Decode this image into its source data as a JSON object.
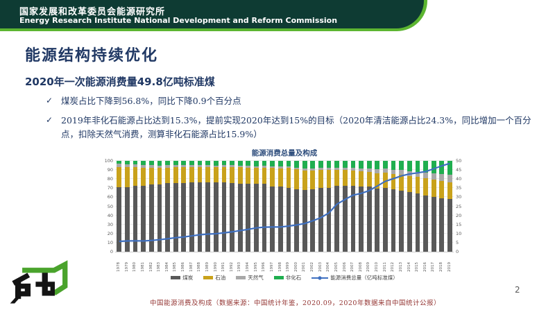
{
  "header": {
    "title_cn": "国家发展和改革委员会能源研究所",
    "title_en": "Energy Research Institute National Development and Reform Commission"
  },
  "slide": {
    "title": "能源结构持续优化",
    "subtitle": "2020年一次能源消费量49.8亿吨标准煤",
    "bullet_mark": "✓",
    "bullets": [
      "煤炭占比下降到56.8%，同比下降0.9个百分点",
      "2019年非化石能源占比达到15.3%，提前实现2020年达到15%的目标（2020年清洁能源占比24.3%，同比增加一个百分点，扣除天然气消费，测算非化石能源占比15.9%）"
    ],
    "caption": "中国能源消费及构成（数据来源：中国统计年鉴，2020.09，2020年数据来自中国统计公报）",
    "page_number": "2"
  },
  "colors": {
    "header_bg": "#0e3b33",
    "accent_green": "#5cb531",
    "navy": "#203864",
    "caption_red": "#953735"
  },
  "chart_data": {
    "type": "combo_stacked_bar_line",
    "title": "能源消费总量及构成",
    "years": [
      1978,
      1979,
      1980,
      1981,
      1982,
      1983,
      1984,
      1985,
      1986,
      1987,
      1988,
      1989,
      1990,
      1991,
      1992,
      1993,
      1994,
      1995,
      1996,
      1997,
      1998,
      1999,
      2000,
      2001,
      2002,
      2003,
      2004,
      2005,
      2006,
      2007,
      2008,
      2009,
      2010,
      2011,
      2012,
      2013,
      2014,
      2015,
      2016,
      2017,
      2018,
      2019
    ],
    "series": [
      {
        "name": "煤炭",
        "color": "#595959",
        "values": [
          70.7,
          71.3,
          72.2,
          72.7,
          73.9,
          74.2,
          75.3,
          75.8,
          75.8,
          76.2,
          76.2,
          76.0,
          76.2,
          76.1,
          75.7,
          74.7,
          75.0,
          74.6,
          74.7,
          71.7,
          71.6,
          70.6,
          68.5,
          68.0,
          68.5,
          70.2,
          70.2,
          72.4,
          72.4,
          72.5,
          71.5,
          71.6,
          69.2,
          70.2,
          68.5,
          67.4,
          65.8,
          63.8,
          62.2,
          60.6,
          59.0,
          57.7
        ]
      },
      {
        "name": "石油",
        "color": "#c9a21b",
        "values": [
          22.7,
          21.8,
          20.7,
          20.0,
          18.7,
          18.1,
          17.4,
          17.1,
          17.2,
          17.0,
          17.0,
          17.1,
          16.6,
          17.1,
          17.5,
          18.2,
          17.4,
          17.5,
          18.0,
          20.4,
          20.4,
          21.5,
          22.0,
          21.2,
          21.0,
          20.1,
          19.9,
          17.8,
          17.5,
          17.0,
          16.7,
          16.4,
          17.4,
          16.8,
          17.0,
          17.1,
          17.3,
          18.4,
          18.7,
          18.9,
          18.9,
          19.0
        ]
      },
      {
        "name": "天然气",
        "color": "#a8a8a8",
        "values": [
          3.2,
          3.3,
          3.1,
          2.8,
          2.5,
          2.4,
          2.4,
          2.2,
          2.3,
          2.1,
          2.1,
          2.0,
          2.1,
          2.0,
          1.9,
          1.9,
          1.9,
          1.8,
          1.8,
          1.7,
          1.8,
          2.0,
          2.2,
          2.4,
          2.3,
          2.3,
          2.3,
          2.4,
          2.7,
          3.0,
          3.4,
          3.5,
          4.0,
          4.6,
          4.8,
          5.3,
          5.6,
          5.8,
          6.1,
          6.9,
          7.6,
          8.0
        ]
      },
      {
        "name": "非化石",
        "color": "#1fae4f",
        "values": [
          3.4,
          3.6,
          4.0,
          4.5,
          4.9,
          5.3,
          4.9,
          4.9,
          4.7,
          4.7,
          4.7,
          4.9,
          5.1,
          4.8,
          4.9,
          5.2,
          5.7,
          6.1,
          5.5,
          6.2,
          6.2,
          5.9,
          7.3,
          8.4,
          8.2,
          7.4,
          7.6,
          7.4,
          7.4,
          7.5,
          8.4,
          8.5,
          9.4,
          8.4,
          9.7,
          10.2,
          11.3,
          12.0,
          13.0,
          13.6,
          14.5,
          15.3
        ]
      }
    ],
    "line": {
      "name": "能源消费总量（亿吨标准煤）",
      "color": "#3e6fc0",
      "axis": "right",
      "values": [
        5.7,
        5.9,
        6.0,
        5.9,
        6.2,
        6.6,
        7.1,
        7.7,
        8.1,
        8.7,
        9.3,
        9.7,
        9.9,
        10.4,
        10.9,
        11.6,
        12.3,
        13.1,
        13.5,
        13.6,
        13.6,
        14.1,
        14.7,
        15.5,
        17.0,
        18.7,
        21.3,
        26.1,
        28.7,
        31.1,
        32.1,
        33.6,
        36.1,
        38.7,
        40.2,
        41.7,
        42.8,
        43.4,
        44.1,
        45.6,
        47.2,
        48.6
      ]
    },
    "left_axis": {
      "min": 0,
      "max": 100,
      "ticks": [
        0,
        10,
        20,
        30,
        40,
        50,
        60,
        70,
        80,
        90,
        100
      ]
    },
    "right_axis": {
      "min": 0,
      "max": 50,
      "ticks": [
        0,
        5,
        10,
        15,
        20,
        25,
        30,
        35,
        40,
        45,
        50
      ]
    },
    "grid": true,
    "legend_position": "bottom"
  }
}
